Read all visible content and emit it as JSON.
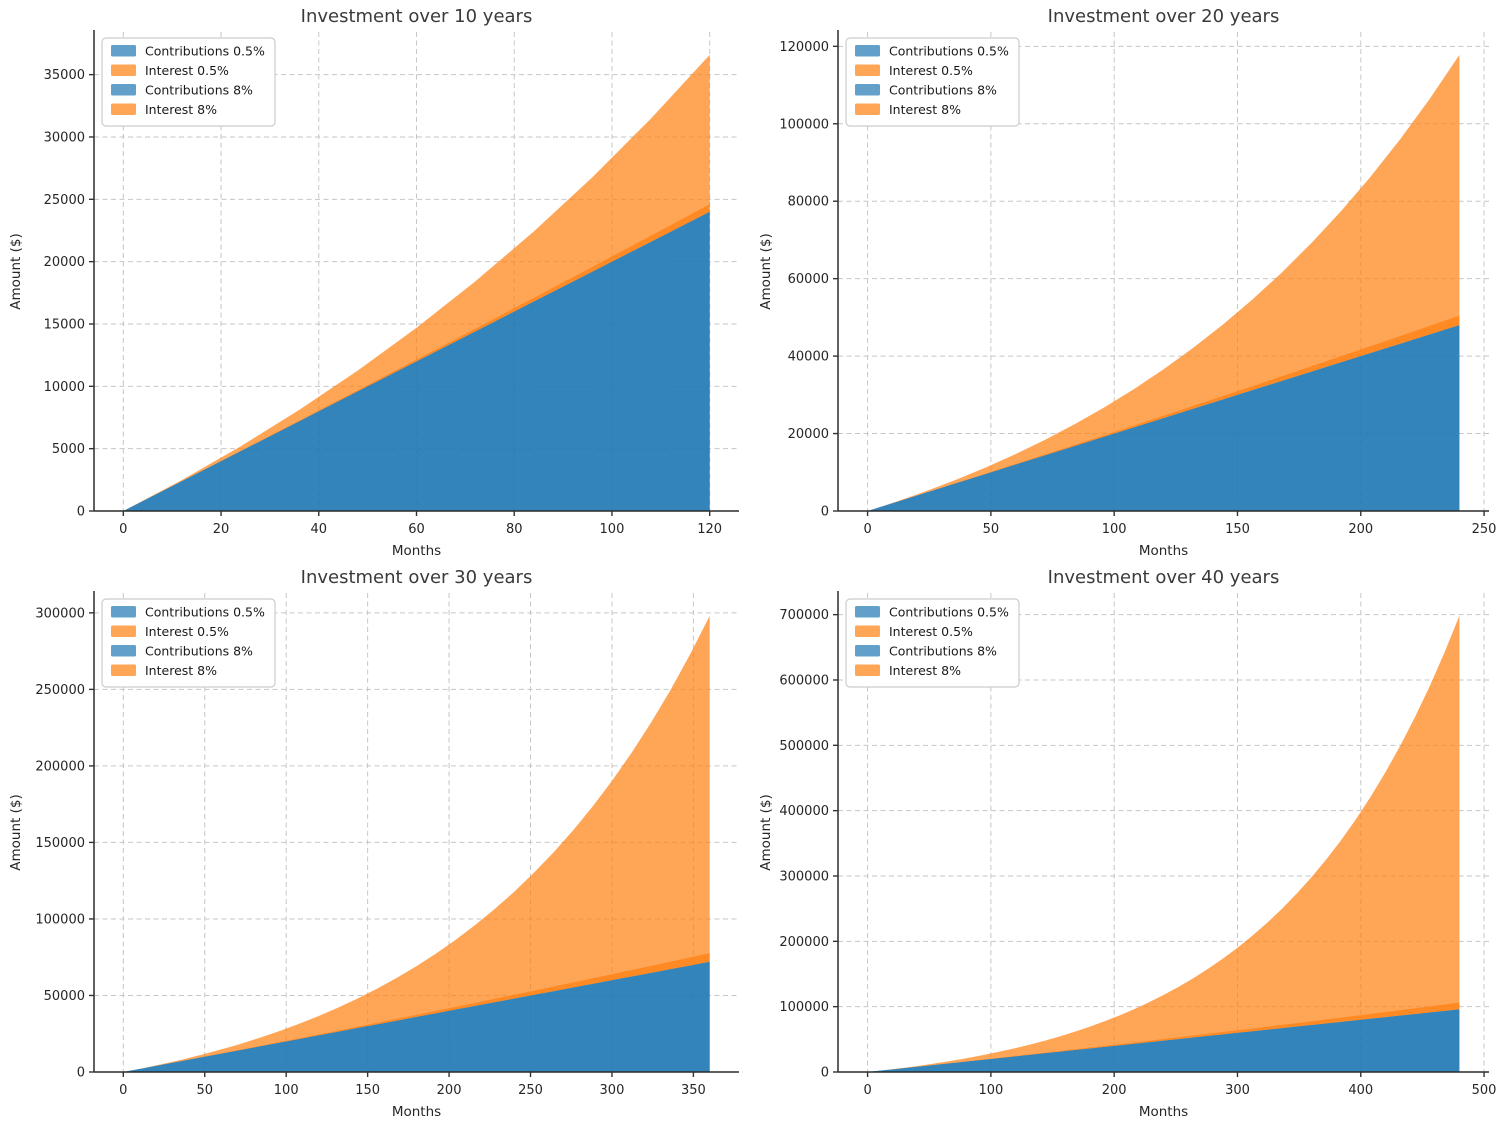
{
  "figure": {
    "background": "#ffffff",
    "grid": "2x2"
  },
  "style": {
    "blue": "#1f77b4",
    "orange": "#ff7f0e",
    "area_alpha": 0.7,
    "grid_color": "#c6c6c6",
    "spine_color": "#2b2b2b",
    "tick_color": "#333333",
    "text_color": "#262626",
    "title_color": "#3a3a3a",
    "legend_bg": "#ffffff",
    "legend_border": "#cccccc"
  },
  "legend": {
    "position": "upper left",
    "items": [
      {
        "label": "Contributions 0.5%",
        "color": "blue"
      },
      {
        "label": "Interest 0.5%",
        "color": "orange"
      },
      {
        "label": "Contributions 8%",
        "color": "blue"
      },
      {
        "label": "Interest 8%",
        "color": "orange"
      }
    ]
  },
  "axis_labels": {
    "x": "Months",
    "y": "Amount ($)"
  },
  "chart_data": [
    {
      "type": "area",
      "title": "Investment over 10 years",
      "xlabel": "Months",
      "ylabel": "Amount ($)",
      "grid": true,
      "xlim": [
        -6,
        126
      ],
      "ylim": [
        0,
        38420
      ],
      "x_ticks": [
        0,
        20,
        40,
        60,
        80,
        100,
        120
      ],
      "y_ticks": [
        0,
        5000,
        10000,
        15000,
        20000,
        25000,
        30000,
        35000
      ],
      "months": [
        0,
        12,
        24,
        36,
        48,
        60,
        72,
        84,
        96,
        108,
        120
      ],
      "contributions": [
        0,
        2400,
        4800,
        7200,
        9600,
        12000,
        14400,
        16800,
        19200,
        21600,
        24000
      ],
      "interest_low": [
        0,
        6,
        23,
        53,
        95,
        149,
        215,
        294,
        385,
        489,
        605
      ],
      "interest_high": [
        0,
        90,
        387,
        907,
        1670,
        2695,
        4005,
        5623,
        7574,
        9886,
        12590
      ]
    },
    {
      "type": "area",
      "title": "Investment over 20 years",
      "xlabel": "Months",
      "ylabel": "Amount ($)",
      "grid": true,
      "xlim": [
        -12,
        252
      ],
      "ylim": [
        0,
        123700
      ],
      "x_ticks": [
        0,
        50,
        100,
        150,
        200,
        250
      ],
      "y_ticks": [
        0,
        20000,
        40000,
        60000,
        80000,
        100000,
        120000
      ],
      "months": [
        0,
        12,
        24,
        36,
        48,
        60,
        72,
        84,
        96,
        108,
        120,
        132,
        144,
        156,
        168,
        180,
        192,
        204,
        216,
        228,
        240
      ],
      "contributions": [
        0,
        2400,
        4800,
        7200,
        9600,
        12000,
        14400,
        16800,
        19200,
        21600,
        24000,
        26400,
        28800,
        31200,
        33600,
        36000,
        38400,
        40800,
        43200,
        45600,
        48000
      ],
      "interest_low": [
        0,
        6,
        23,
        53,
        95,
        149,
        215,
        294,
        385,
        489,
        605,
        734,
        875,
        1029,
        1196,
        1376,
        1569,
        1775,
        1994,
        2226,
        2471
      ],
      "interest_high": [
        0,
        90,
        387,
        907,
        1670,
        2695,
        4005,
        5623,
        7574,
        9886,
        12590,
        15716,
        19302,
        23385,
        28005,
        33208,
        39043,
        45560,
        52818,
        60878,
        69805
      ]
    },
    {
      "type": "area",
      "title": "Investment over 30 years",
      "xlabel": "Months",
      "ylabel": "Amount ($)",
      "grid": true,
      "xlim": [
        -18,
        378
      ],
      "ylim": [
        0,
        312980
      ],
      "x_ticks": [
        0,
        50,
        100,
        150,
        200,
        250,
        300,
        350
      ],
      "y_ticks": [
        0,
        50000,
        100000,
        150000,
        200000,
        250000,
        300000
      ],
      "months": [
        0,
        12,
        24,
        36,
        48,
        60,
        72,
        84,
        96,
        108,
        120,
        132,
        144,
        156,
        168,
        180,
        192,
        204,
        216,
        228,
        240,
        252,
        264,
        276,
        288,
        300,
        312,
        324,
        336,
        348,
        360
      ],
      "contributions": [
        0,
        2400,
        4800,
        7200,
        9600,
        12000,
        14400,
        16800,
        19200,
        21600,
        24000,
        26400,
        28800,
        31200,
        33600,
        36000,
        38400,
        40800,
        43200,
        45600,
        48000,
        50400,
        52800,
        55200,
        57600,
        60000,
        62400,
        64800,
        67200,
        69600,
        72000
      ],
      "interest_low": [
        0,
        6,
        23,
        53,
        95,
        149,
        215,
        294,
        385,
        489,
        605,
        734,
        875,
        1029,
        1196,
        1376,
        1569,
        1775,
        1994,
        2226,
        2471,
        2729,
        3002,
        3286,
        3584,
        3897,
        4222,
        4562,
        4915,
        5283,
        5663
      ],
      "interest_high": [
        0,
        90,
        387,
        907,
        1670,
        2695,
        4005,
        5623,
        7574,
        9886,
        12590,
        15716,
        19302,
        23385,
        28005,
        33208,
        39043,
        45560,
        52818,
        60878,
        69805,
        79673,
        90559,
        102548,
        115731,
        130208,
        146085,
        163479,
        182517,
        203333,
        226076
      ]
    },
    {
      "type": "area",
      "title": "Investment over 40 years",
      "xlabel": "Months",
      "ylabel": "Amount ($)",
      "grid": true,
      "xlim": [
        -24,
        504
      ],
      "ylim": [
        0,
        733130
      ],
      "x_ticks": [
        0,
        100,
        200,
        300,
        400,
        500
      ],
      "y_ticks": [
        0,
        100000,
        200000,
        300000,
        400000,
        500000,
        600000,
        700000
      ],
      "months": [
        0,
        12,
        24,
        36,
        48,
        60,
        72,
        84,
        96,
        108,
        120,
        132,
        144,
        156,
        168,
        180,
        192,
        204,
        216,
        228,
        240,
        252,
        264,
        276,
        288,
        300,
        312,
        324,
        336,
        348,
        360,
        372,
        384,
        396,
        408,
        420,
        432,
        444,
        456,
        468,
        480
      ],
      "contributions": [
        0,
        2400,
        4800,
        7200,
        9600,
        12000,
        14400,
        16800,
        19200,
        21600,
        24000,
        26400,
        28800,
        31200,
        33600,
        36000,
        38400,
        40800,
        43200,
        45600,
        48000,
        50400,
        52800,
        55200,
        57600,
        60000,
        62400,
        64800,
        67200,
        69600,
        72000,
        74400,
        76800,
        79200,
        81600,
        84000,
        86400,
        88800,
        91200,
        93600,
        96000
      ],
      "interest_low": [
        0,
        6,
        23,
        53,
        95,
        149,
        215,
        294,
        385,
        489,
        605,
        734,
        875,
        1029,
        1196,
        1376,
        1569,
        1775,
        1994,
        2226,
        2471,
        2729,
        3002,
        3286,
        3584,
        3897,
        4222,
        4562,
        4915,
        5283,
        5663,
        6057,
        6466,
        6889,
        7326,
        7777,
        8242,
        8722,
        9216,
        9724,
        10248
      ],
      "interest_high": [
        0,
        90,
        387,
        907,
        1670,
        2695,
        4005,
        5623,
        7574,
        9886,
        12590,
        15716,
        19302,
        23385,
        28005,
        33208,
        39043,
        45560,
        52818,
        60878,
        69805,
        79673,
        90559,
        102548,
        115731,
        130208,
        146085,
        163479,
        182517,
        203333,
        226076,
        250907,
        277997,
        307535,
        339725,
        374784,
        412954,
        454490,
        499673,
        548805,
        602215
      ]
    }
  ]
}
